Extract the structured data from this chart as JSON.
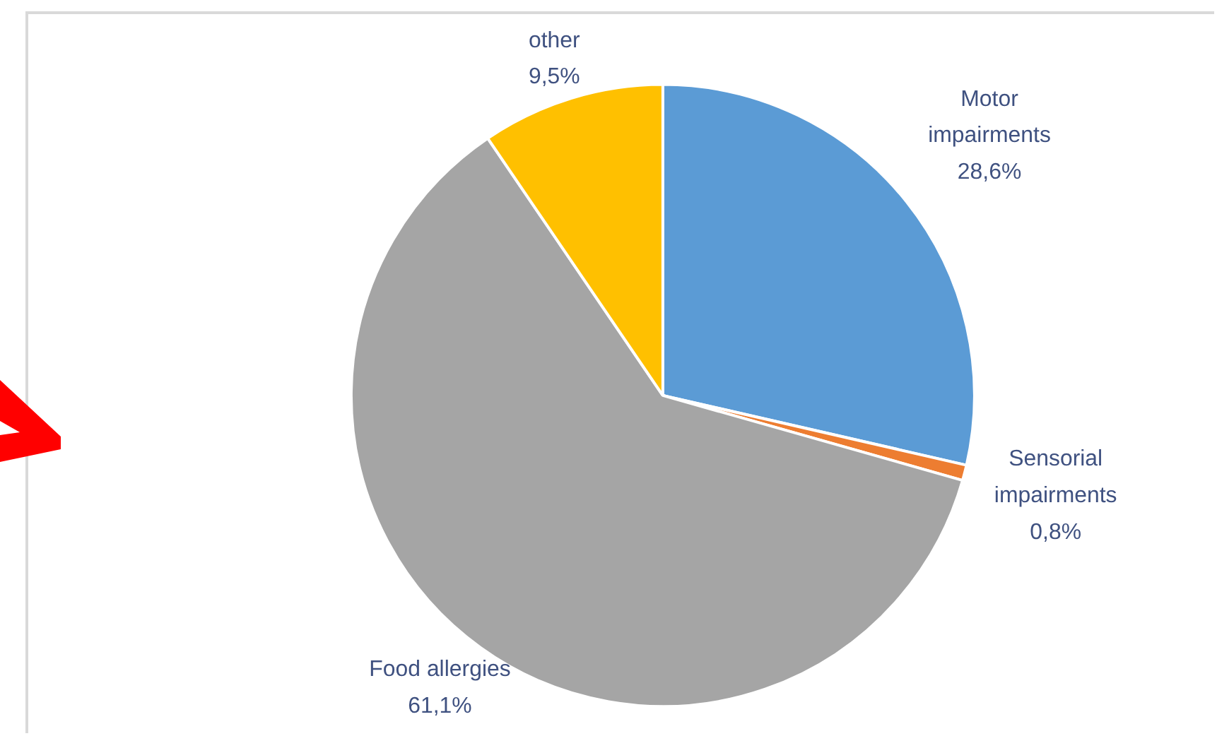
{
  "chart_data": {
    "type": "pie",
    "categories": [
      "Motor impairments",
      "Sensorial impairments",
      "Food allergies",
      "other"
    ],
    "values": [
      28.6,
      0.8,
      61.1,
      9.5
    ],
    "colors": [
      "#5b9bd5",
      "#ed7d31",
      "#a5a5a5",
      "#ffc000"
    ],
    "value_labels": [
      "28,6%",
      "0,8%",
      "61,1%",
      "9,5%"
    ]
  }
}
